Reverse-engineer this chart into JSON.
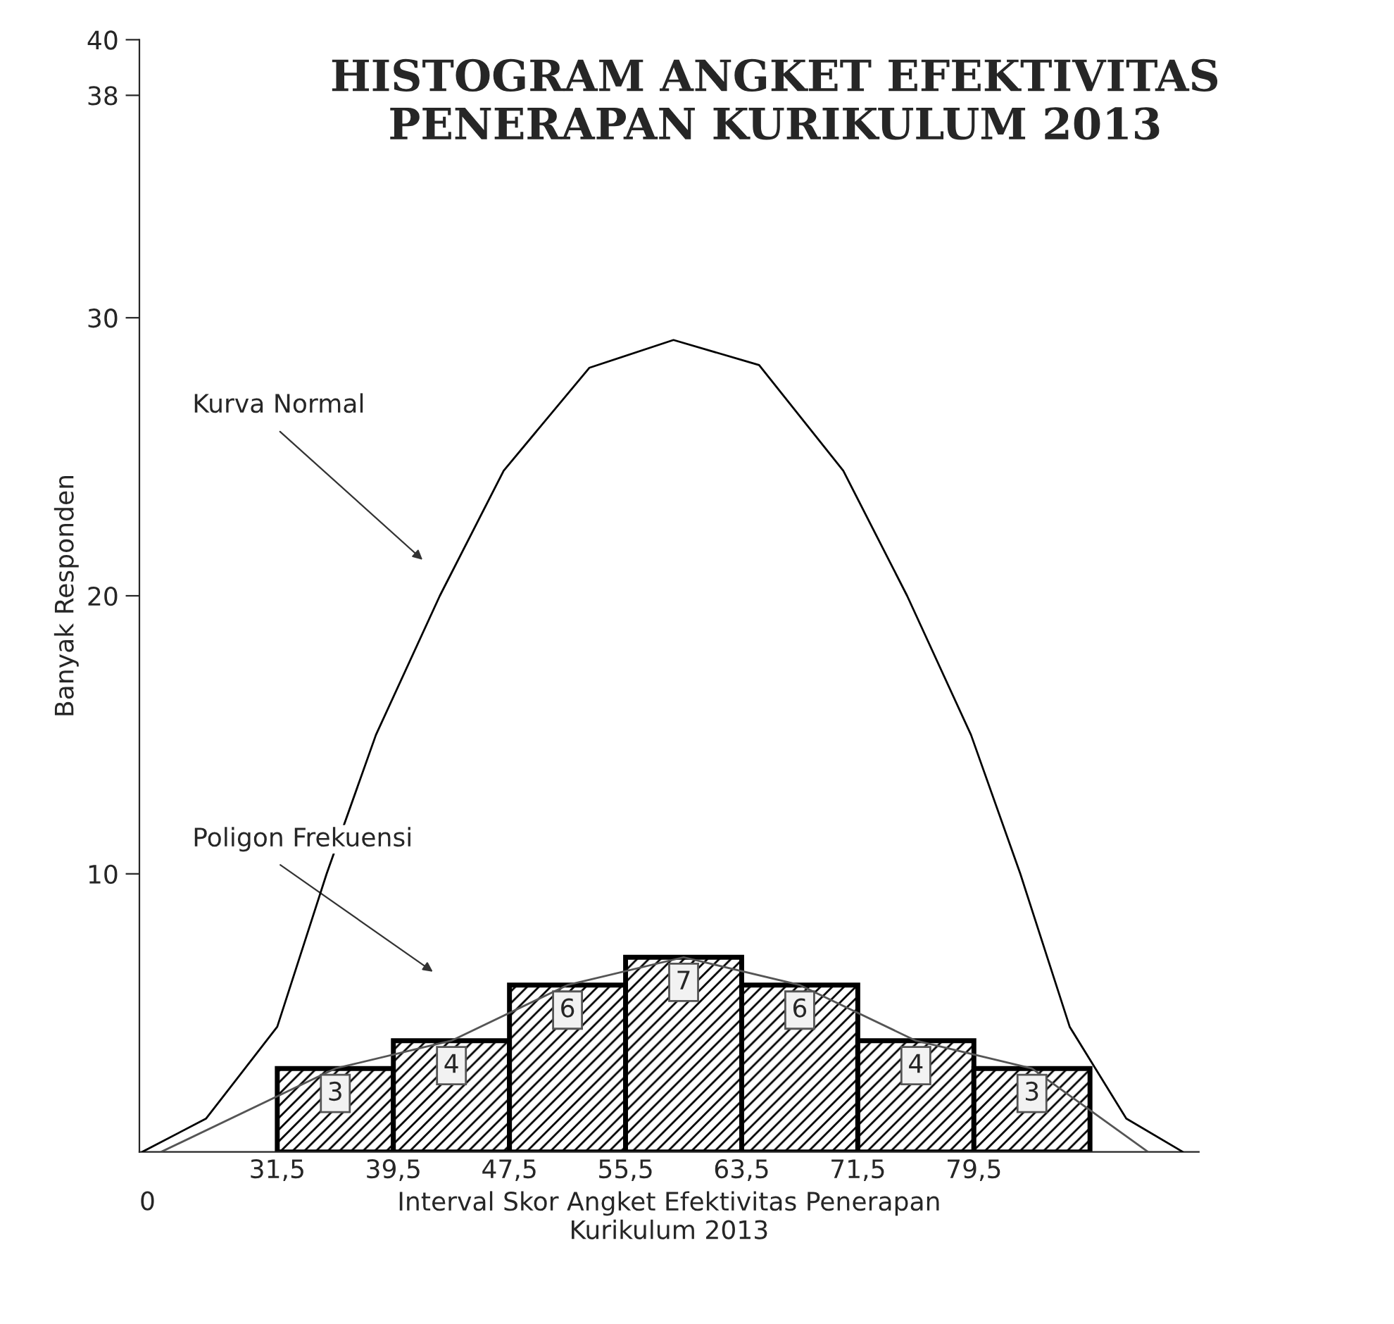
{
  "chart_data": {
    "type": "histogram",
    "title": "HISTOGRAM ANGKET EFEKTIVITAS\nPENERAPAN KURIKULUM 2013",
    "xlabel": "Interval Skor Angket Efektivitas Penerapan\nKurikulum 2013",
    "ylabel": "Banyak Responden",
    "bins": [
      31.5,
      39.5,
      47.5,
      55.5,
      63.5,
      71.5,
      79.5,
      87.5
    ],
    "values": [
      3,
      4,
      6,
      7,
      6,
      4,
      3
    ],
    "color": "#000000",
    "value_labels": [
      "3",
      "4",
      "6",
      "7",
      "6",
      "4",
      "3"
    ],
    "series": [
      {
        "type": "line",
        "color": "#000000",
        "x": [
          22.2,
          26.6,
          31.5,
          34.9,
          38.3,
          42.7,
          47.1,
          53.0,
          58.8,
          64.7,
          70.5,
          74.9,
          79.3,
          82.7,
          86.1,
          90.0,
          93.9
        ],
        "values": [
          0,
          1.2,
          4.5,
          10,
          15,
          20,
          24.5,
          28.2,
          29.2,
          28.3,
          24.5,
          20,
          15,
          10,
          4.5,
          1.2,
          0
        ]
      },
      {
        "type": "line",
        "color": "#555555",
        "x": [
          23.5,
          35.5,
          43.5,
          51.5,
          59.5,
          67.5,
          75.5,
          83.5,
          91.5
        ],
        "values": [
          0,
          3,
          4,
          6,
          7,
          6,
          4,
          3,
          0
        ]
      }
    ],
    "annotations": [
      "Kurva Normal",
      "Poligon Frekuensi",
      "0"
    ],
    "xlim": [
      22,
      95
    ],
    "ylim": [
      0,
      40
    ],
    "xticks": [
      {
        "value": 31.5,
        "label": "31,5"
      },
      {
        "value": 39.5,
        "label": "39,5"
      },
      {
        "value": 47.5,
        "label": "47,5"
      },
      {
        "value": 55.5,
        "label": "55,5"
      },
      {
        "value": 63.5,
        "label": "63,5"
      },
      {
        "value": 71.5,
        "label": "71,5"
      },
      {
        "value": 79.5,
        "label": "79,5"
      }
    ],
    "yticks": [
      10,
      20,
      30,
      38,
      40
    ],
    "grid": false,
    "legend": false
  }
}
